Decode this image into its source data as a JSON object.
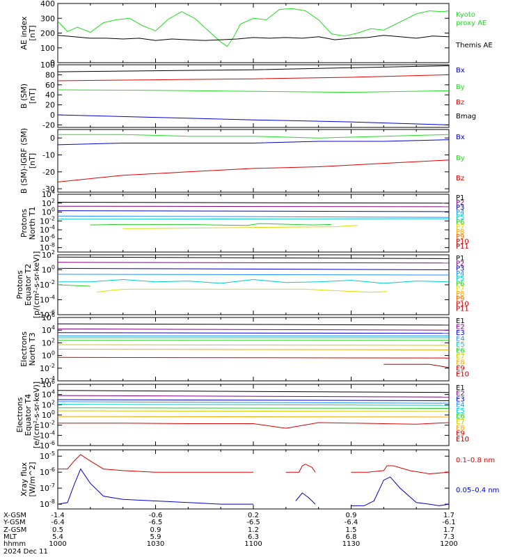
{
  "chart_data": [
    {
      "panel": "ae",
      "type": "line",
      "ylabel": [
        "AE index",
        "[nT]"
      ],
      "ylim": [
        0,
        400
      ],
      "yscale": "linear",
      "yticks": [
        0,
        100,
        200,
        300,
        400
      ],
      "series": [
        {
          "name": "Kyoto",
          "name2": "proxy AE",
          "color": "#22dd22",
          "x": [
            0,
            3,
            6,
            10,
            14,
            18,
            22,
            26,
            30,
            34,
            38,
            42,
            46,
            50,
            52,
            54,
            56,
            60,
            64,
            68,
            72,
            76,
            80,
            84,
            88,
            92,
            96,
            100,
            105,
            110,
            114,
            118,
            120
          ],
          "y": [
            280,
            210,
            240,
            205,
            270,
            290,
            300,
            250,
            215,
            295,
            345,
            300,
            220,
            140,
            110,
            175,
            260,
            300,
            290,
            360,
            365,
            350,
            290,
            195,
            180,
            200,
            230,
            220,
            275,
            330,
            350,
            345,
            350
          ]
        },
        {
          "name": "Themis AE",
          "color": "#000000",
          "x": [
            0,
            5,
            10,
            15,
            20,
            25,
            30,
            35,
            40,
            45,
            50,
            55,
            60,
            65,
            70,
            75,
            80,
            85,
            90,
            95,
            100,
            105,
            110,
            115,
            120
          ],
          "y": [
            185,
            175,
            165,
            165,
            160,
            165,
            150,
            160,
            155,
            150,
            155,
            160,
            170,
            165,
            170,
            165,
            175,
            155,
            165,
            170,
            185,
            175,
            165,
            180,
            175
          ]
        }
      ]
    },
    {
      "panel": "bsm",
      "type": "line",
      "ylabel": [
        "B (SM)",
        "[nT]"
      ],
      "ylim": [
        -25,
        100
      ],
      "yscale": "linear",
      "yticks": [
        -20,
        0,
        20,
        40,
        60,
        80,
        100
      ],
      "series": [
        {
          "name": "Bx",
          "color": "#0000cc",
          "x": [
            0,
            30,
            60,
            90,
            120
          ],
          "y": [
            0,
            -5,
            -10,
            -14,
            -20
          ]
        },
        {
          "name": "By",
          "color": "#22dd22",
          "x": [
            0,
            30,
            60,
            90,
            120
          ],
          "y": [
            50,
            49,
            47,
            45,
            48
          ]
        },
        {
          "name": "Bz",
          "color": "#dd0000",
          "x": [
            0,
            30,
            60,
            90,
            120
          ],
          "y": [
            68,
            70,
            72,
            75,
            80
          ]
        },
        {
          "name": "Bmag",
          "color": "#000000",
          "x": [
            0,
            30,
            60,
            90,
            120
          ],
          "y": [
            86,
            88,
            90,
            94,
            98
          ]
        }
      ]
    },
    {
      "panel": "bsm-igrf",
      "type": "line",
      "ylabel": [
        "B (SM)-IGRF (SM)",
        "[nT]"
      ],
      "ylim": [
        -32,
        5
      ],
      "yscale": "linear",
      "yticks": [
        -30,
        -20,
        -10,
        0
      ],
      "series": [
        {
          "name": "Bx",
          "color": "#0000cc",
          "x": [
            0,
            20,
            40,
            60,
            80,
            100,
            120
          ],
          "y": [
            -4,
            -3,
            -3,
            -3,
            -2,
            -2,
            -1
          ]
        },
        {
          "name": "By",
          "color": "#22dd22",
          "x": [
            0,
            20,
            40,
            60,
            80,
            100,
            120
          ],
          "y": [
            2,
            2,
            1,
            1,
            0,
            1,
            2
          ]
        },
        {
          "name": "Bz",
          "color": "#dd0000",
          "x": [
            0,
            20,
            40,
            60,
            80,
            100,
            120
          ],
          "y": [
            -26,
            -22,
            -20,
            -18,
            -17,
            -15,
            -13
          ]
        }
      ]
    },
    {
      "panel": "p1",
      "type": "line",
      "ylabel": [
        "Protons",
        "North T1"
      ],
      "yscale": "log",
      "ylim": [
        -9,
        4
      ],
      "yticks": [
        4,
        2,
        0,
        -2,
        -4,
        -6,
        -8
      ],
      "series": [
        {
          "name": "P1",
          "color": "#000000",
          "x": [
            0,
            120
          ],
          "y": [
            2.2,
            2.0
          ]
        },
        {
          "name": "P2",
          "color": "#800080",
          "x": [
            0,
            120
          ],
          "y": [
            1.3,
            1.2
          ]
        },
        {
          "name": "P3",
          "color": "#0000cc",
          "x": [
            0,
            120
          ],
          "y": [
            0.3,
            0.1
          ]
        },
        {
          "name": "P4",
          "color": "#1e90ff",
          "x": [
            0,
            120
          ],
          "y": [
            -0.9,
            -1.2
          ]
        },
        {
          "name": "P5",
          "color": "#00cccc",
          "x": [
            0,
            120
          ],
          "y": [
            -1.6,
            -1.5
          ]
        },
        {
          "name": "P6",
          "color": "#22cc22",
          "x": [
            10,
            18,
            40,
            48,
            58,
            62,
            78,
            84
          ],
          "y": [
            -2.9,
            -2.8,
            -2.8,
            -2.9,
            -3.0,
            -2.6,
            -2.9,
            -2.8
          ]
        },
        {
          "name": "P7",
          "color": "#dddd00",
          "x": [
            20,
            26,
            85,
            92
          ],
          "y": [
            -3.7,
            -3.7,
            -3.3,
            -3.0
          ]
        },
        {
          "name": "P8",
          "color": "#ffa500",
          "x": [],
          "y": []
        },
        {
          "name": "P9",
          "color": "#ff6600",
          "x": [],
          "y": []
        },
        {
          "name": "P10",
          "color": "#dd0000",
          "x": [],
          "y": []
        },
        {
          "name": "P11",
          "color": "#aa0000",
          "x": [],
          "y": []
        }
      ]
    },
    {
      "panel": "p2",
      "type": "line",
      "ylabel": [
        "Protons",
        "Equator T2",
        "[p/(cm²-s-sr-keV)]"
      ],
      "yscale": "log",
      "ylim": [
        -6,
        2
      ],
      "yticks": [
        2,
        0,
        -2,
        -4,
        -6
      ],
      "series": [
        {
          "name": "P1",
          "color": "#000000",
          "x": [
            0,
            120
          ],
          "y": [
            1.7,
            1.5
          ]
        },
        {
          "name": "P2",
          "color": "#800080",
          "x": [
            0,
            120
          ],
          "y": [
            1.0,
            0.9
          ]
        },
        {
          "name": "P3",
          "color": "#0000cc",
          "x": [
            0,
            120
          ],
          "y": [
            0.2,
            0.0
          ]
        },
        {
          "name": "P4",
          "color": "#1e90ff",
          "x": [
            0,
            120
          ],
          "y": [
            -0.6,
            -0.7
          ]
        },
        {
          "name": "P5",
          "color": "#00cccc",
          "x": [
            0,
            10,
            20,
            30,
            40,
            50,
            60,
            70,
            80,
            90,
            100,
            110,
            120
          ],
          "y": [
            -1.6,
            -1.6,
            -1.3,
            -1.6,
            -1.5,
            -1.8,
            -1.3,
            -1.7,
            -1.6,
            -1.4,
            -1.8,
            -1.5,
            -1.6
          ]
        },
        {
          "name": "P6",
          "color": "#22cc22",
          "x": [
            0,
            10
          ],
          "y": [
            -2.0,
            -2.2
          ]
        },
        {
          "name": "P7",
          "color": "#dddd00",
          "x": [
            12,
            17,
            21,
            28,
            70,
            76,
            96,
            101
          ],
          "y": [
            -3.0,
            -2.7,
            -2.6,
            -2.6,
            -2.6,
            -2.6,
            -3.0,
            -2.9
          ]
        },
        {
          "name": "P8",
          "color": "#ffa500",
          "x": [],
          "y": []
        },
        {
          "name": "P9",
          "color": "#ff6600",
          "x": [],
          "y": []
        },
        {
          "name": "P10",
          "color": "#dd0000",
          "x": [],
          "y": []
        },
        {
          "name": "P11",
          "color": "#aa0000",
          "x": [],
          "y": []
        }
      ]
    },
    {
      "panel": "e3",
      "type": "line",
      "ylabel": [
        "Electrons",
        "North T3"
      ],
      "yscale": "log",
      "ylim": [
        -4,
        6
      ],
      "yticks": [
        6,
        4,
        2,
        0,
        -2,
        -4
      ],
      "series": [
        {
          "name": "E1",
          "color": "#000000",
          "x": [
            0,
            120
          ],
          "y": [
            5.0,
            4.8
          ]
        },
        {
          "name": "E2",
          "color": "#800080",
          "x": [
            0,
            120
          ],
          "y": [
            4.2,
            4.0
          ]
        },
        {
          "name": "E3",
          "color": "#0000cc",
          "x": [
            0,
            120
          ],
          "y": [
            3.6,
            3.5
          ]
        },
        {
          "name": "E4",
          "color": "#1e90ff",
          "x": [
            0,
            120
          ],
          "y": [
            3.1,
            3.1
          ]
        },
        {
          "name": "E5",
          "color": "#00cccc",
          "x": [
            0,
            120
          ],
          "y": [
            2.8,
            2.8
          ]
        },
        {
          "name": "E6",
          "color": "#22cc22",
          "x": [
            0,
            120
          ],
          "y": [
            2.4,
            2.4
          ]
        },
        {
          "name": "E7",
          "color": "#cccc00",
          "x": [
            0,
            120
          ],
          "y": [
            1.7,
            1.6
          ]
        },
        {
          "name": "E8",
          "color": "#ffa500",
          "x": [
            0,
            120
          ],
          "y": [
            1.0,
            0.9
          ]
        },
        {
          "name": "E9",
          "color": "#dd0000",
          "x": [
            0,
            120
          ],
          "y": [
            -0.3,
            -0.4
          ]
        },
        {
          "name": "E10",
          "color": "#aa0000",
          "x": [
            100,
            114,
            120
          ],
          "y": [
            -1.4,
            -1.4,
            -1.9
          ]
        }
      ]
    },
    {
      "panel": "e4",
      "type": "line",
      "ylabel": [
        "Electrons",
        "Equator T4",
        "[e/(cm²-s-sr-keV)]"
      ],
      "yscale": "log",
      "ylim": [
        -6,
        6
      ],
      "yticks": [
        6,
        4,
        2,
        0,
        -2,
        -4,
        -6
      ],
      "series": [
        {
          "name": "E1",
          "color": "#000000",
          "x": [
            0,
            120
          ],
          "y": [
            4.8,
            4.4
          ]
        },
        {
          "name": "E2",
          "color": "#800080",
          "x": [
            0,
            120
          ],
          "y": [
            3.8,
            3.5
          ]
        },
        {
          "name": "E3",
          "color": "#0000cc",
          "x": [
            0,
            120
          ],
          "y": [
            3.0,
            2.8
          ]
        },
        {
          "name": "E4",
          "color": "#1e90ff",
          "x": [
            0,
            120
          ],
          "y": [
            2.6,
            2.3
          ]
        },
        {
          "name": "E5",
          "color": "#00cccc",
          "x": [
            0,
            120
          ],
          "y": [
            2.1,
            1.9
          ]
        },
        {
          "name": "E6",
          "color": "#22cc22",
          "x": [
            0,
            120
          ],
          "y": [
            1.4,
            1.3
          ]
        },
        {
          "name": "E7",
          "color": "#cccc00",
          "x": [
            0,
            120
          ],
          "y": [
            0.8,
            0.7
          ]
        },
        {
          "name": "E8",
          "color": "#ffa500",
          "x": [
            0,
            120
          ],
          "y": [
            -0.3,
            -0.4
          ]
        },
        {
          "name": "E9",
          "color": "#dd0000",
          "x": [
            0,
            20,
            40,
            60,
            70,
            80,
            90,
            100,
            110,
            120
          ],
          "y": [
            -1.6,
            -1.6,
            -1.7,
            -1.7,
            -2.6,
            -1.5,
            -1.6,
            -1.7,
            -1.8,
            -1.5
          ]
        },
        {
          "name": "E10",
          "color": "#aa0000",
          "x": [],
          "y": []
        }
      ]
    },
    {
      "panel": "xray",
      "type": "line",
      "ylabel": [
        "Xray flux",
        "[W/m^2]"
      ],
      "yscale": "log",
      "ylim": [
        -8.3,
        -4.6
      ],
      "yticks": [
        -5,
        -6,
        -7,
        -8
      ],
      "series": [
        {
          "name": "0.1–0.8 nm",
          "color": "#dd0000",
          "x": [
            0,
            3,
            5,
            7,
            10,
            14,
            20,
            30,
            40,
            50,
            60,
            62,
            70,
            74,
            75,
            76,
            78,
            79,
            82,
            90,
            95,
            100,
            101,
            103,
            108,
            114,
            120
          ],
          "y": [
            -5.8,
            -5.8,
            -5.3,
            -4.9,
            -5.3,
            -5.8,
            -5.9,
            -6.0,
            -6.0,
            -6.0,
            -6.0,
            null,
            -6.0,
            -6.0,
            -5.6,
            -5.5,
            -5.7,
            -6.0,
            null,
            -6.0,
            -6.0,
            -5.9,
            -5.6,
            -5.6,
            -5.9,
            -6.1,
            -6.0
          ]
        },
        {
          "name": "0.05–0.4 nm",
          "color": "#0000cc",
          "x": [
            0,
            3,
            5,
            7,
            10,
            14,
            20,
            30,
            40,
            50,
            60,
            70,
            73,
            75,
            77,
            79,
            82,
            90,
            94,
            97,
            100,
            102,
            105,
            110,
            114,
            117,
            120
          ],
          "y": [
            -8.0,
            -7.9,
            -6.8,
            -5.8,
            -6.7,
            -7.5,
            -7.7,
            -7.8,
            -7.9,
            -8.0,
            -8.0,
            null,
            -7.8,
            -7.3,
            -7.6,
            -8.0,
            null,
            -8.1,
            -8.1,
            -7.8,
            -6.5,
            -6.3,
            -7.0,
            -7.9,
            -8.0,
            -8.1,
            -8.0
          ]
        }
      ]
    }
  ],
  "xaxis": {
    "rows": [
      {
        "label": "X-GSM",
        "values": [
          "-1.4",
          "-0.6",
          "0.2",
          "0.9",
          "1.7"
        ]
      },
      {
        "label": "Y-GSM",
        "values": [
          "-6.4",
          "-6.5",
          "-6.5",
          "-6.4",
          "-6.1"
        ]
      },
      {
        "label": "Z-GSM",
        "values": [
          "0.5",
          "0.9",
          "1.2",
          "1.5",
          "1.7"
        ]
      },
      {
        "label": "MLT",
        "values": [
          "5.4",
          "5.9",
          "6.3",
          "6.8",
          "7.3"
        ]
      },
      {
        "label": "hhmm",
        "values": [
          "1000",
          "1030",
          "1100",
          "1130",
          "1200"
        ]
      }
    ],
    "date": "2024 Dec 11"
  },
  "colors": {
    "axis": "#000000",
    "background": "#ffffff"
  }
}
